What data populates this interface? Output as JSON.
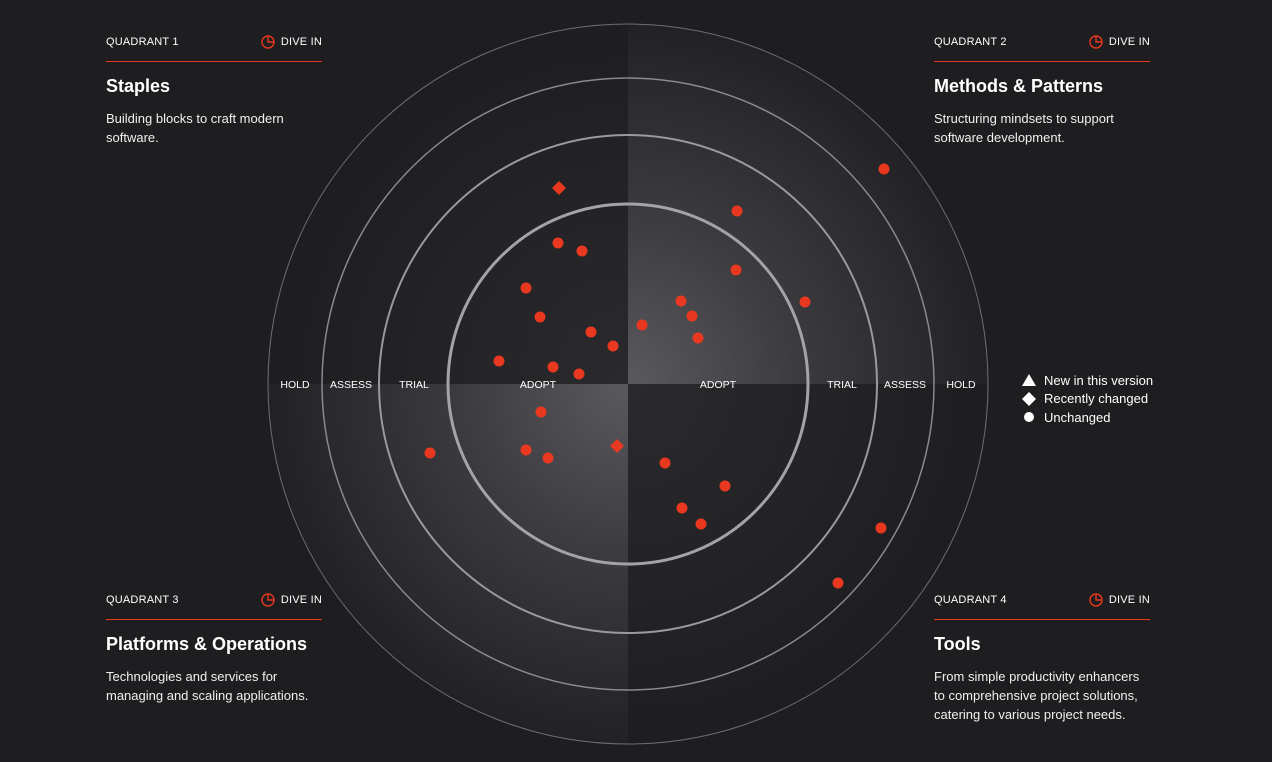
{
  "quadrants": [
    {
      "number": "QUADRANT 1",
      "dive": "DIVE IN",
      "title": "Staples",
      "description": "Building blocks to craft modern software."
    },
    {
      "number": "QUADRANT 2",
      "dive": "DIVE IN",
      "title": "Methods & Patterns",
      "description": "Structuring mindsets to support software development."
    },
    {
      "number": "QUADRANT 3",
      "dive": "DIVE IN",
      "title": "Platforms & Operations",
      "description": "Technologies and services for managing and scaling applications."
    },
    {
      "number": "QUADRANT 4",
      "dive": "DIVE IN",
      "title": "Tools",
      "description": "From simple productivity enhancers to comprehensive project solutions, catering to various project needs."
    }
  ],
  "rings": {
    "left": [
      "HOLD",
      "ASSESS",
      "TRIAL",
      "ADOPT"
    ],
    "right": [
      "ADOPT",
      "TRIAL",
      "ASSESS",
      "HOLD"
    ]
  },
  "legend": [
    {
      "shape": "triangle-icon",
      "label": "New in this version"
    },
    {
      "shape": "diamond-icon",
      "label": "Recently changed"
    },
    {
      "shape": "circle-icon",
      "label": "Unchanged"
    }
  ],
  "colors": {
    "accent": "#e8381f",
    "background": "#1e1e21"
  },
  "blips": [
    {
      "quadrant": 1,
      "ring": "TRIAL",
      "shape": "diamond"
    },
    {
      "quadrant": 1,
      "ring": "ADOPT",
      "shape": "circle"
    },
    {
      "quadrant": 1,
      "ring": "ADOPT",
      "shape": "circle"
    },
    {
      "quadrant": 1,
      "ring": "ADOPT",
      "shape": "circle"
    },
    {
      "quadrant": 1,
      "ring": "ADOPT",
      "shape": "circle"
    },
    {
      "quadrant": 1,
      "ring": "ADOPT",
      "shape": "circle"
    },
    {
      "quadrant": 1,
      "ring": "ADOPT",
      "shape": "circle"
    },
    {
      "quadrant": 1,
      "ring": "ADOPT",
      "shape": "circle"
    },
    {
      "quadrant": 1,
      "ring": "ADOPT",
      "shape": "circle"
    },
    {
      "quadrant": 1,
      "ring": "ADOPT",
      "shape": "circle"
    },
    {
      "quadrant": 2,
      "ring": "HOLD",
      "shape": "circle"
    },
    {
      "quadrant": 2,
      "ring": "TRIAL",
      "shape": "circle"
    },
    {
      "quadrant": 2,
      "ring": "ADOPT",
      "shape": "circle"
    },
    {
      "quadrant": 2,
      "ring": "TRIAL",
      "shape": "circle"
    },
    {
      "quadrant": 2,
      "ring": "ADOPT",
      "shape": "circle"
    },
    {
      "quadrant": 2,
      "ring": "ADOPT",
      "shape": "circle"
    },
    {
      "quadrant": 2,
      "ring": "ADOPT",
      "shape": "circle"
    },
    {
      "quadrant": 2,
      "ring": "ADOPT",
      "shape": "circle"
    },
    {
      "quadrant": 3,
      "ring": "ADOPT",
      "shape": "circle"
    },
    {
      "quadrant": 3,
      "ring": "ADOPT",
      "shape": "diamond"
    },
    {
      "quadrant": 3,
      "ring": "ADOPT",
      "shape": "circle"
    },
    {
      "quadrant": 3,
      "ring": "ADOPT",
      "shape": "circle"
    },
    {
      "quadrant": 3,
      "ring": "TRIAL",
      "shape": "circle"
    },
    {
      "quadrant": 4,
      "ring": "ADOPT",
      "shape": "circle"
    },
    {
      "quadrant": 4,
      "ring": "ADOPT",
      "shape": "circle"
    },
    {
      "quadrant": 4,
      "ring": "ADOPT",
      "shape": "circle"
    },
    {
      "quadrant": 4,
      "ring": "ADOPT",
      "shape": "circle"
    },
    {
      "quadrant": 4,
      "ring": "HOLD",
      "shape": "circle"
    },
    {
      "quadrant": 4,
      "ring": "ASSESS",
      "shape": "circle"
    }
  ]
}
